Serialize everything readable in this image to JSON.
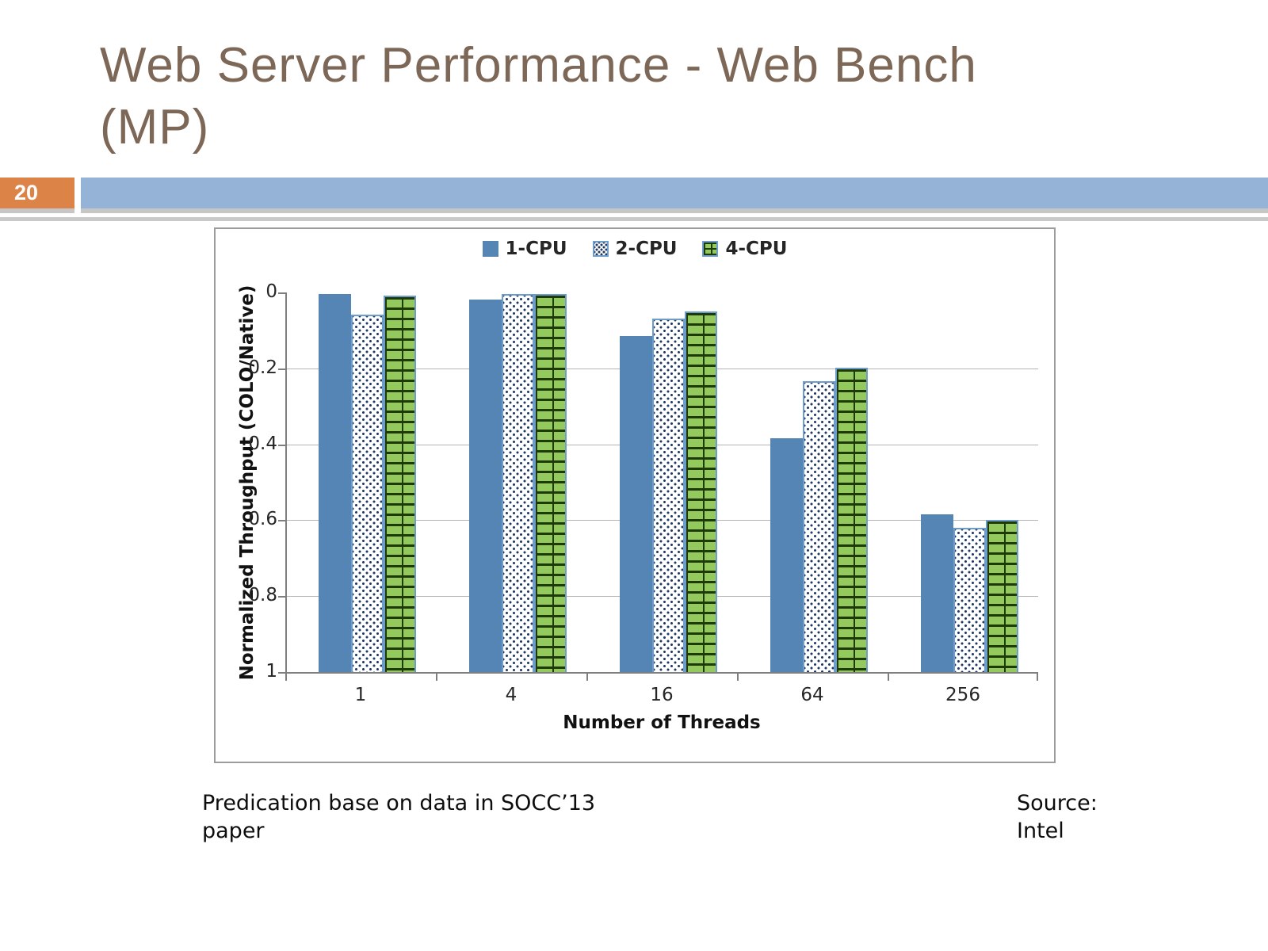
{
  "slide": {
    "title_line1": "Web Server Performance - Web Bench",
    "title_line2": "(MP)",
    "page_number": "20",
    "footer_note_line1": "Predication base on data in SOCC’13",
    "footer_note_line2": "paper",
    "source_line1": "Source:",
    "source_line2": "Intel"
  },
  "colors": {
    "title": "#7D6757",
    "badge": "#DC8347",
    "band": "#95B3D7",
    "bar1": "#5585B5",
    "bar_border": "#6F9DC9",
    "brick": "#94CA5D",
    "brick_mortar": "#1E3A08",
    "dot": "#1F3864",
    "grid": "#B4B4B4",
    "axis": "#7F7F7F"
  },
  "chart_data": {
    "type": "bar",
    "title": "",
    "categories": [
      "1",
      "4",
      "16",
      "64",
      "256"
    ],
    "series": [
      {
        "name": "1-CPU",
        "values": [
          1.0,
          0.985,
          0.89,
          0.62,
          0.42
        ]
      },
      {
        "name": "2-CPU",
        "values": [
          0.945,
          1.0,
          0.935,
          0.77,
          0.385
        ]
      },
      {
        "name": "4-CPU",
        "values": [
          0.995,
          1.0,
          0.955,
          0.805,
          0.405
        ]
      }
    ],
    "xlabel": "Number of Threads",
    "ylabel": "Normalized Throughput (COLO/Native)",
    "ylim": [
      0,
      1
    ],
    "yticks": [
      0,
      0.2,
      0.4,
      0.6,
      0.8,
      1
    ],
    "ytick_labels": [
      "0",
      "0.2",
      "0.4",
      "0.6",
      "0.8",
      "1"
    ],
    "legend_position": "top",
    "grid": true
  }
}
